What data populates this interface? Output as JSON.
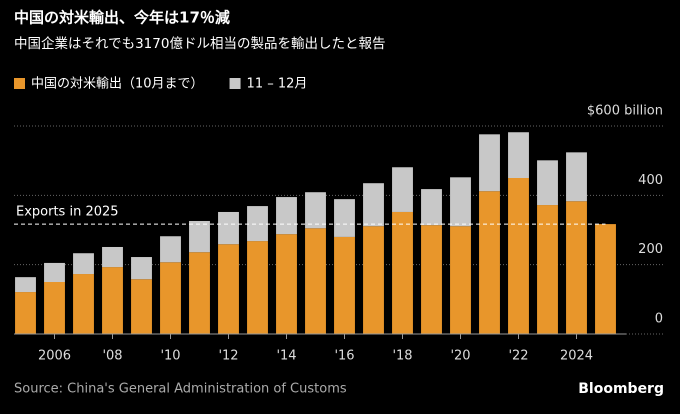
{
  "chart_data": {
    "type": "stacked_bar",
    "title": "中国の対米輸出、今年は17％減",
    "subtitle": "中国企業はそれでも3170億ドル相当の製品を輸出したと報告",
    "source": "Source: China's General Administration of Customs",
    "logo": "Bloomberg",
    "annotation": "Exports in 2025",
    "categories": [
      null,
      "2006",
      null,
      "'08",
      null,
      "'10",
      null,
      "'12",
      null,
      "'14",
      null,
      "'16",
      null,
      "'18",
      null,
      "'20",
      null,
      "'22",
      null,
      "2024",
      null
    ],
    "series": [
      {
        "name": "中国の対米輸出（10月まで）",
        "color": "#e8962b",
        "values": [
          121,
          150,
          173,
          193,
          158,
          207,
          236,
          259,
          268,
          288,
          305,
          280,
          311,
          352,
          314,
          311,
          412,
          450,
          372,
          383,
          317
        ]
      },
      {
        "name": "11 – 12月",
        "color": "#c8c8c8",
        "values": [
          43,
          55,
          60,
          58,
          64,
          75,
          90,
          93,
          101,
          107,
          104,
          109,
          124,
          129,
          104,
          141,
          164,
          132,
          129,
          141,
          null
        ]
      }
    ],
    "ylim": [
      0,
      600
    ],
    "yticks": [
      0,
      200,
      400,
      {
        "value": 600,
        "label": "$600 billion"
      }
    ],
    "grid": true
  }
}
